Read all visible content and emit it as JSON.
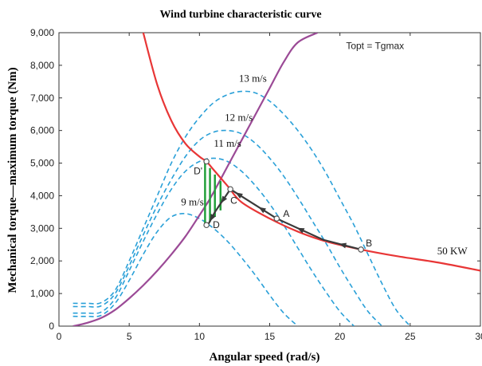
{
  "chart_data": {
    "type": "line",
    "title": "Wind turbine characteristic curve",
    "xlabel": "Angular speed (rad/s)",
    "ylabel": "Mechanical torque—maximum torque (Nm)",
    "xlim": [
      0,
      30
    ],
    "ylim": [
      0,
      9000
    ],
    "x_ticks": [
      "0",
      "5",
      "10",
      "15",
      "20",
      "25",
      "30"
    ],
    "y_ticks": [
      "0",
      "1,000",
      "2,000",
      "3,000",
      "4,000",
      "5,000",
      "6,000",
      "7,000",
      "8,000",
      "9,000"
    ],
    "grid": false,
    "colors": {
      "wind_curves": "#2aa0d8",
      "max_torque_curve": "#9b4a96",
      "power_curve": "#e83636",
      "operating_path": "#3a3a3a",
      "transition_lines": "#22a03a"
    },
    "series": [
      {
        "name": "13 m/s",
        "style": "dashed",
        "x": [
          1,
          2,
          3,
          4,
          5,
          6,
          7,
          8,
          9,
          10,
          11,
          12,
          13,
          14,
          15,
          16,
          17,
          18,
          19,
          20,
          21,
          22,
          23,
          24,
          25
        ],
        "y": [
          700,
          700,
          720,
          1100,
          2000,
          3000,
          4000,
          5000,
          5800,
          6400,
          6850,
          7100,
          7200,
          7150,
          6900,
          6500,
          6000,
          5400,
          4700,
          3900,
          3100,
          2200,
          1300,
          500,
          0
        ]
      },
      {
        "name": "12 m/s",
        "style": "dashed",
        "x": [
          1,
          2,
          3,
          4,
          5,
          6,
          7,
          8,
          9,
          10,
          11,
          12,
          13,
          14,
          15,
          16,
          17,
          18,
          19,
          20,
          21,
          22,
          23
        ],
        "y": [
          600,
          600,
          620,
          1000,
          1850,
          2800,
          3700,
          4500,
          5200,
          5700,
          5950,
          6000,
          5900,
          5600,
          5150,
          4600,
          3950,
          3250,
          2550,
          1800,
          1100,
          450,
          0
        ]
      },
      {
        "name": "11 m/s",
        "style": "dashed",
        "x": [
          1,
          2,
          3,
          4,
          5,
          6,
          7,
          8,
          9,
          10,
          11,
          12,
          13,
          14,
          15,
          16,
          17,
          18,
          19,
          20,
          21
        ],
        "y": [
          400,
          400,
          430,
          850,
          1700,
          2600,
          3450,
          4200,
          4750,
          5050,
          5150,
          5050,
          4750,
          4300,
          3750,
          3100,
          2400,
          1700,
          1050,
          450,
          0
        ]
      },
      {
        "name": "9 m/s",
        "style": "dashed",
        "x": [
          1,
          2,
          3,
          4,
          5,
          6,
          7,
          8,
          9,
          10,
          11,
          12,
          13,
          14,
          15,
          16,
          17
        ],
        "y": [
          300,
          300,
          330,
          700,
          1400,
          2200,
          2900,
          3350,
          3450,
          3300,
          3000,
          2600,
          2100,
          1550,
          950,
          400,
          0
        ]
      },
      {
        "name": "Topt = Tgmax",
        "style": "solid",
        "x": [
          1,
          2,
          3,
          4,
          5,
          6,
          7,
          8,
          9,
          10,
          10.6,
          11,
          12,
          13,
          14,
          15,
          16,
          17,
          18.4
        ],
        "y": [
          0,
          100,
          250,
          500,
          850,
          1250,
          1700,
          2200,
          2750,
          3400,
          3800,
          4100,
          4900,
          5700,
          6500,
          7300,
          8100,
          8700,
          9000
        ]
      },
      {
        "name": "50 KW",
        "style": "solid",
        "x": [
          6,
          7,
          8,
          9,
          10,
          10.5,
          11,
          12,
          13,
          15,
          17,
          19,
          21.5,
          24,
          27,
          30
        ],
        "y": [
          9000,
          7400,
          6300,
          5600,
          5200,
          5050,
          4800,
          4300,
          3800,
          3300,
          2900,
          2600,
          2350,
          2150,
          1950,
          1700
        ]
      }
    ],
    "operating_path": {
      "x": [
        21.5,
        18.8,
        15.5,
        13.3,
        12.2,
        11.1,
        10.6
      ],
      "y": [
        2350,
        2650,
        3300,
        3900,
        4200,
        3500,
        3100
      ]
    },
    "transition_lines": {
      "x_pairs": [
        [
          10.4,
          10.4
        ],
        [
          10.75,
          10.75
        ],
        [
          11.1,
          11.1
        ],
        [
          11.5,
          11.5
        ]
      ],
      "y_pairs": [
        [
          3100,
          5050
        ],
        [
          3200,
          4850
        ],
        [
          3350,
          4650
        ],
        [
          3550,
          4450
        ]
      ]
    },
    "points": [
      {
        "label": "D'",
        "x": 10.5,
        "y": 5050
      },
      {
        "label": "D",
        "x": 10.5,
        "y": 3100
      },
      {
        "label": "C",
        "x": 12.2,
        "y": 4200
      },
      {
        "label": "A",
        "x": 15.5,
        "y": 3300
      },
      {
        "label": "B",
        "x": 21.5,
        "y": 2350
      }
    ],
    "annotations": [
      {
        "text": "13 m/s",
        "x": 13.8,
        "y": 7500
      },
      {
        "text": "12 m/s",
        "x": 12.8,
        "y": 6300
      },
      {
        "text": "11 m/s",
        "x": 12.0,
        "y": 5500
      },
      {
        "text": "9 m/s",
        "x": 9.5,
        "y": 3700
      },
      {
        "text": "Topt = Tgmax",
        "x": 22.5,
        "y": 8500
      },
      {
        "text": "50 KW",
        "x": 28.0,
        "y": 2200
      }
    ]
  }
}
